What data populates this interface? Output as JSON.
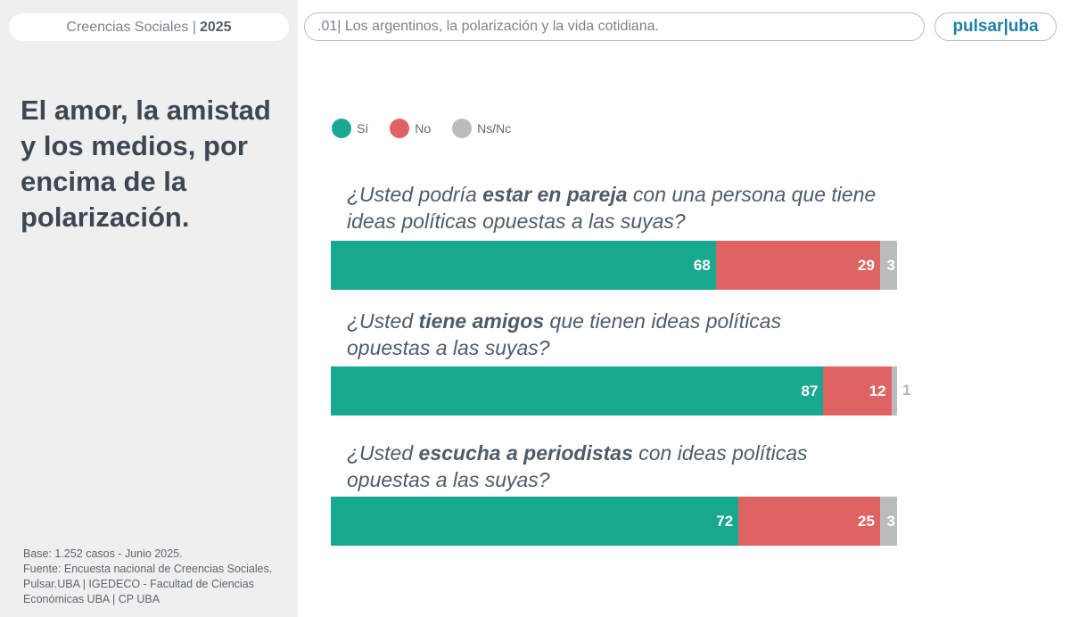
{
  "header": {
    "section": "Creencias Sociales |",
    "year": "2025",
    "chapter": ".01| Los argentinos, la polarización y la vida cotidiana.",
    "logo": "pulsar|uba"
  },
  "sidebar": {
    "title": "El amor, la amistad y los medios, por encima de la polarización.",
    "base": "Base: 1.252 casos - Junio 2025.",
    "source": "Fuente: Encuesta nacional de Creencias Sociales. Pulsar.UBA | IGEDECO - Facultad de Ciencias Económicas UBA | CP UBA"
  },
  "chart_data": {
    "type": "bar",
    "stacked": true,
    "orientation": "horizontal",
    "legend": [
      {
        "name": "Sí",
        "color": "#18a890"
      },
      {
        "name": "No",
        "color": "#e06363"
      },
      {
        "name": "Ns/Nc",
        "color": "#bbbbbb"
      }
    ],
    "questions": [
      {
        "pre": "¿Usted podría ",
        "bold": "estar en pareja",
        "post": " con una persona que tiene ideas políticas opuestas a las suyas?",
        "values": [
          68,
          29,
          3
        ]
      },
      {
        "pre": "¿Usted ",
        "bold": "tiene amigos",
        "post": " que tienen ideas políticas opuestas a las suyas?",
        "values": [
          87,
          12,
          1
        ]
      },
      {
        "pre": "¿Usted ",
        "bold": "escucha a periodistas",
        "post": " con ideas políticas opuestas a las suyas?",
        "values": [
          72,
          25,
          3
        ]
      }
    ]
  }
}
